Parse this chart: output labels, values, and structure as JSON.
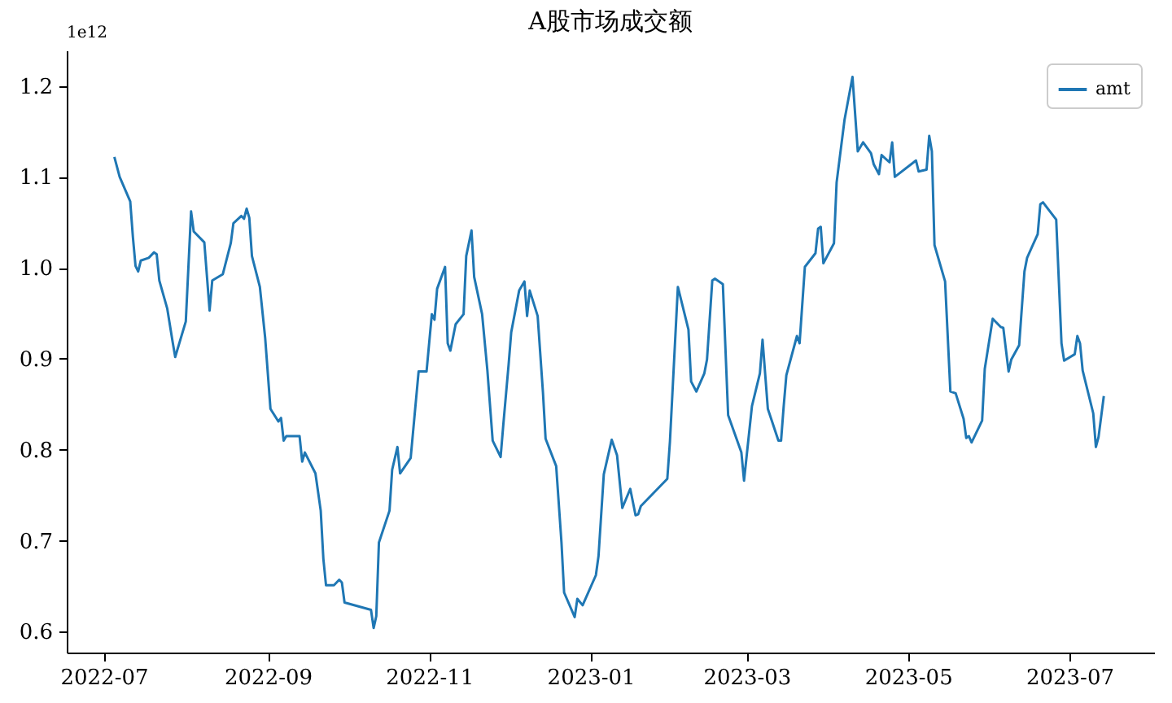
{
  "chart_data": {
    "type": "line",
    "title": "A股市场成交额",
    "annotations": [
      "1e12"
    ],
    "x": [
      "2022-07-05",
      "2022-07-07",
      "2022-07-11",
      "2022-07-12",
      "2022-07-13",
      "2022-07-14",
      "2022-07-15",
      "2022-07-18",
      "2022-07-20",
      "2022-07-21",
      "2022-07-22",
      "2022-07-25",
      "2022-07-27",
      "2022-07-28",
      "2022-08-01",
      "2022-08-03",
      "2022-08-04",
      "2022-08-08",
      "2022-08-10",
      "2022-08-11",
      "2022-08-15",
      "2022-08-18",
      "2022-08-19",
      "2022-08-22",
      "2022-08-23",
      "2022-08-24",
      "2022-08-25",
      "2022-08-26",
      "2022-08-29",
      "2022-08-31",
      "2022-09-02",
      "2022-09-05",
      "2022-09-06",
      "2022-09-07",
      "2022-09-08",
      "2022-09-13",
      "2022-09-14",
      "2022-09-15",
      "2022-09-19",
      "2022-09-21",
      "2022-09-22",
      "2022-09-23",
      "2022-09-26",
      "2022-09-28",
      "2022-09-29",
      "2022-09-30",
      "2022-10-10",
      "2022-10-11",
      "2022-10-12",
      "2022-10-13",
      "2022-10-17",
      "2022-10-18",
      "2022-10-20",
      "2022-10-21",
      "2022-10-25",
      "2022-10-28",
      "2022-10-31",
      "2022-11-02",
      "2022-11-03",
      "2022-11-04",
      "2022-11-07",
      "2022-11-08",
      "2022-11-09",
      "2022-11-11",
      "2022-11-14",
      "2022-11-15",
      "2022-11-17",
      "2022-11-18",
      "2022-11-21",
      "2022-11-23",
      "2022-11-25",
      "2022-11-28",
      "2022-11-29",
      "2022-12-01",
      "2022-12-02",
      "2022-12-05",
      "2022-12-07",
      "2022-12-08",
      "2022-12-09",
      "2022-12-12",
      "2022-12-14",
      "2022-12-15",
      "2022-12-19",
      "2022-12-21",
      "2022-12-22",
      "2022-12-26",
      "2022-12-27",
      "2022-12-29",
      "2023-01-03",
      "2023-01-04",
      "2023-01-06",
      "2023-01-09",
      "2023-01-11",
      "2023-01-13",
      "2023-01-16",
      "2023-01-18",
      "2023-01-19",
      "2023-01-20",
      "2023-01-30",
      "2023-01-31",
      "2023-02-03",
      "2023-02-07",
      "2023-02-08",
      "2023-02-10",
      "2023-02-13",
      "2023-02-14",
      "2023-02-16",
      "2023-02-17",
      "2023-02-20",
      "2023-02-22",
      "2023-02-27",
      "2023-02-28",
      "2023-03-03",
      "2023-03-06",
      "2023-03-07",
      "2023-03-09",
      "2023-03-13",
      "2023-03-14",
      "2023-03-15",
      "2023-03-16",
      "2023-03-20",
      "2023-03-21",
      "2023-03-23",
      "2023-03-27",
      "2023-03-28",
      "2023-03-29",
      "2023-03-30",
      "2023-04-03",
      "2023-04-04",
      "2023-04-07",
      "2023-04-10",
      "2023-04-12",
      "2023-04-13",
      "2023-04-14",
      "2023-04-17",
      "2023-04-18",
      "2023-04-20",
      "2023-04-21",
      "2023-04-24",
      "2023-04-25",
      "2023-04-26",
      "2023-05-04",
      "2023-05-05",
      "2023-05-08",
      "2023-05-09",
      "2023-05-10",
      "2023-05-11",
      "2023-05-15",
      "2023-05-17",
      "2023-05-19",
      "2023-05-22",
      "2023-05-23",
      "2023-05-24",
      "2023-05-25",
      "2023-05-29",
      "2023-05-30",
      "2023-06-02",
      "2023-06-05",
      "2023-06-06",
      "2023-06-08",
      "2023-06-09",
      "2023-06-12",
      "2023-06-14",
      "2023-06-15",
      "2023-06-19",
      "2023-06-20",
      "2023-06-21",
      "2023-06-26",
      "2023-06-28",
      "2023-06-29",
      "2023-07-03",
      "2023-07-04",
      "2023-07-05",
      "2023-07-06",
      "2023-07-10",
      "2023-07-11",
      "2023-07-12",
      "2023-07-14"
    ],
    "series": [
      {
        "name": "amt",
        "color": "#1f77b4",
        "values": [
          1.122,
          1.1,
          1.073,
          1.034,
          1.002,
          0.996,
          1.008,
          1.011,
          1.017,
          1.015,
          0.986,
          0.955,
          0.919,
          0.902,
          0.941,
          1.062,
          1.04,
          1.028,
          0.953,
          0.986,
          0.993,
          1.027,
          1.049,
          1.057,
          1.054,
          1.065,
          1.055,
          1.013,
          0.979,
          0.923,
          0.845,
          0.831,
          0.835,
          0.81,
          0.815,
          0.815,
          0.787,
          0.797,
          0.774,
          0.733,
          0.68,
          0.651,
          0.651,
          0.657,
          0.654,
          0.632,
          0.624,
          0.604,
          0.617,
          0.698,
          0.733,
          0.778,
          0.803,
          0.774,
          0.791,
          0.886,
          0.886,
          0.949,
          0.943,
          0.977,
          1.001,
          0.917,
          0.909,
          0.938,
          0.949,
          1.013,
          1.041,
          0.99,
          0.949,
          0.887,
          0.81,
          0.792,
          0.827,
          0.893,
          0.929,
          0.975,
          0.985,
          0.947,
          0.975,
          0.947,
          0.863,
          0.812,
          0.782,
          0.698,
          0.643,
          0.616,
          0.636,
          0.629,
          0.662,
          0.683,
          0.773,
          0.811,
          0.794,
          0.736,
          0.757,
          0.728,
          0.729,
          0.738,
          0.768,
          0.809,
          0.979,
          0.932,
          0.875,
          0.864,
          0.884,
          0.899,
          0.986,
          0.988,
          0.982,
          0.838,
          0.797,
          0.766,
          0.848,
          0.884,
          0.921,
          0.845,
          0.81,
          0.81,
          0.848,
          0.882,
          0.925,
          0.917,
          1.001,
          1.016,
          1.043,
          1.045,
          1.005,
          1.027,
          1.094,
          1.163,
          1.21,
          1.128,
          1.133,
          1.138,
          1.126,
          1.114,
          1.103,
          1.124,
          1.116,
          1.138,
          1.1,
          1.118,
          1.106,
          1.108,
          1.145,
          1.128,
          1.025,
          0.985,
          0.864,
          0.862,
          0.834,
          0.813,
          0.815,
          0.808,
          0.832,
          0.889,
          0.944,
          0.935,
          0.934,
          0.886,
          0.899,
          0.915,
          0.996,
          1.011,
          1.037,
          1.07,
          1.072,
          1.053,
          0.917,
          0.898,
          0.905,
          0.925,
          0.917,
          0.887,
          0.84,
          0.803,
          0.814,
          0.859
        ]
      }
    ],
    "xlim": [
      "2022-06-17",
      "2023-08-02"
    ],
    "xticks": [
      "2022-07",
      "2022-09",
      "2022-11",
      "2023-01",
      "2023-03",
      "2023-05",
      "2023-07"
    ],
    "ylim": [
      0.577,
      1.239
    ],
    "yticks": [
      0.6,
      0.7,
      0.8,
      0.9,
      {
        "value": 1,
        "label": "1.0"
      },
      1.1,
      1.2
    ],
    "legend": "top right"
  }
}
